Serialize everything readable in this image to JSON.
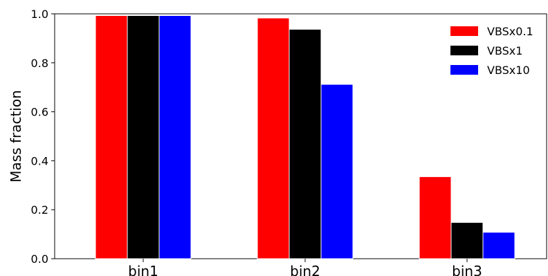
{
  "chart_data": {
    "type": "bar",
    "title": "",
    "xlabel": "",
    "ylabel": "Mass fraction",
    "ylim": [
      0,
      1.0
    ],
    "yticks": [
      "0.0",
      "0.2",
      "0.4",
      "0.6",
      "0.8",
      "1.0"
    ],
    "categories": [
      "bin1",
      "bin2",
      "bin3"
    ],
    "series": [
      {
        "name": "VBSx0.1",
        "color": "#ff0000",
        "values": [
          0.993,
          0.983,
          0.335
        ]
      },
      {
        "name": "VBSx1",
        "color": "#000000",
        "values": [
          0.993,
          0.937,
          0.148
        ]
      },
      {
        "name": "VBSx10",
        "color": "#0000ff",
        "values": [
          0.993,
          0.712,
          0.108
        ]
      }
    ],
    "grid": false,
    "legend_position": "top-right"
  }
}
